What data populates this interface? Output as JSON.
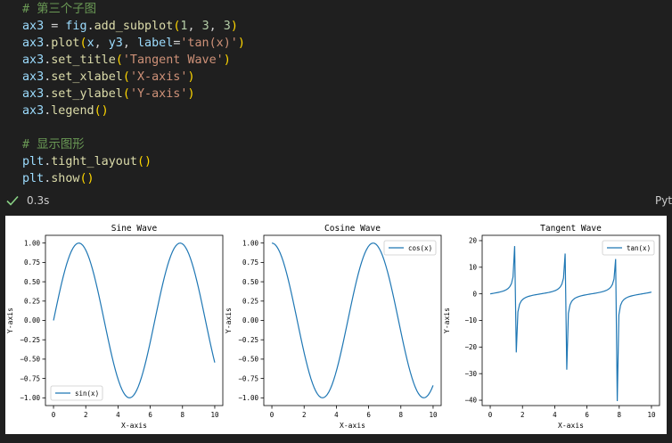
{
  "code": {
    "lines": [
      [
        {
          "t": "# 第三个子图",
          "c": "cm"
        }
      ],
      [
        {
          "t": "ax3",
          "c": "id"
        },
        {
          "t": " = ",
          "c": "pu"
        },
        {
          "t": "fig",
          "c": "id"
        },
        {
          "t": ".",
          "c": "pu"
        },
        {
          "t": "add_subplot",
          "c": "fn"
        },
        {
          "t": "(",
          "c": "pr"
        },
        {
          "t": "1",
          "c": "nm"
        },
        {
          "t": ", ",
          "c": "pu"
        },
        {
          "t": "3",
          "c": "nm"
        },
        {
          "t": ", ",
          "c": "pu"
        },
        {
          "t": "3",
          "c": "nm"
        },
        {
          "t": ")",
          "c": "pr"
        }
      ],
      [
        {
          "t": "ax3",
          "c": "id"
        },
        {
          "t": ".",
          "c": "pu"
        },
        {
          "t": "plot",
          "c": "fn"
        },
        {
          "t": "(",
          "c": "pr"
        },
        {
          "t": "x",
          "c": "id"
        },
        {
          "t": ", ",
          "c": "pu"
        },
        {
          "t": "y3",
          "c": "id"
        },
        {
          "t": ", ",
          "c": "pu"
        },
        {
          "t": "label",
          "c": "id"
        },
        {
          "t": "=",
          "c": "pu"
        },
        {
          "t": "'tan(x)'",
          "c": "st"
        },
        {
          "t": ")",
          "c": "pr"
        }
      ],
      [
        {
          "t": "ax3",
          "c": "id"
        },
        {
          "t": ".",
          "c": "pu"
        },
        {
          "t": "set_title",
          "c": "fn"
        },
        {
          "t": "(",
          "c": "pr"
        },
        {
          "t": "'Tangent Wave'",
          "c": "st"
        },
        {
          "t": ")",
          "c": "pr"
        }
      ],
      [
        {
          "t": "ax3",
          "c": "id"
        },
        {
          "t": ".",
          "c": "pu"
        },
        {
          "t": "set_xlabel",
          "c": "fn"
        },
        {
          "t": "(",
          "c": "pr"
        },
        {
          "t": "'X-axis'",
          "c": "st"
        },
        {
          "t": ")",
          "c": "pr"
        }
      ],
      [
        {
          "t": "ax3",
          "c": "id"
        },
        {
          "t": ".",
          "c": "pu"
        },
        {
          "t": "set_ylabel",
          "c": "fn"
        },
        {
          "t": "(",
          "c": "pr"
        },
        {
          "t": "'Y-axis'",
          "c": "st"
        },
        {
          "t": ")",
          "c": "pr"
        }
      ],
      [
        {
          "t": "ax3",
          "c": "id"
        },
        {
          "t": ".",
          "c": "pu"
        },
        {
          "t": "legend",
          "c": "fn"
        },
        {
          "t": "()",
          "c": "pr"
        }
      ],
      [],
      [
        {
          "t": "# 显示图形",
          "c": "cm"
        }
      ],
      [
        {
          "t": "plt",
          "c": "id"
        },
        {
          "t": ".",
          "c": "pu"
        },
        {
          "t": "tight_layout",
          "c": "fn"
        },
        {
          "t": "()",
          "c": "pr"
        }
      ],
      [
        {
          "t": "plt",
          "c": "id"
        },
        {
          "t": ".",
          "c": "pu"
        },
        {
          "t": "show",
          "c": "fn"
        },
        {
          "t": "()",
          "c": "pr"
        }
      ]
    ]
  },
  "status": {
    "exec_time": "0.3s",
    "language": "Pyt",
    "check_icon": "check-icon",
    "check_color": "#89d185"
  },
  "colors": {
    "line": "#1f77b4"
  },
  "chart_data": [
    {
      "type": "line",
      "function": "sin",
      "title": "Sine Wave",
      "xlabel": "X-axis",
      "ylabel": "Y-axis",
      "xlim": [
        -0.5,
        10.5
      ],
      "ylim": [
        -1.1,
        1.1
      ],
      "xticks": [
        0,
        2,
        4,
        6,
        8,
        10
      ],
      "yticks": [
        1.0,
        0.75,
        0.5,
        0.25,
        0.0,
        -0.25,
        -0.5,
        -0.75,
        -1.0
      ],
      "ytick_labels": [
        "1.00",
        "0.75",
        "0.50",
        "0.25",
        "0.00",
        "−0.25",
        "−0.50",
        "−0.75",
        "−1.00"
      ],
      "legend": {
        "label": "sin(x)",
        "position": "lower-left"
      },
      "series": [
        {
          "name": "sin(x)",
          "x_range": [
            0,
            10
          ]
        }
      ]
    },
    {
      "type": "line",
      "function": "cos",
      "title": "Cosine Wave",
      "xlabel": "X-axis",
      "ylabel": "Y-axis",
      "xlim": [
        -0.5,
        10.5
      ],
      "ylim": [
        -1.1,
        1.1
      ],
      "xticks": [
        0,
        2,
        4,
        6,
        8,
        10
      ],
      "yticks": [
        1.0,
        0.75,
        0.5,
        0.25,
        0.0,
        -0.25,
        -0.5,
        -0.75,
        -1.0
      ],
      "ytick_labels": [
        "1.00",
        "0.75",
        "0.50",
        "0.25",
        "0.00",
        "−0.25",
        "−0.50",
        "−0.75",
        "−1.00"
      ],
      "legend": {
        "label": "cos(x)",
        "position": "upper-right"
      },
      "series": [
        {
          "name": "cos(x)",
          "x_range": [
            0,
            10
          ]
        }
      ]
    },
    {
      "type": "line",
      "function": "tan",
      "title": "Tangent Wave",
      "xlabel": "X-axis",
      "ylabel": "Y-axis",
      "xlim": [
        -0.5,
        10.5
      ],
      "ylim": [
        -42,
        22
      ],
      "xticks": [
        0,
        2,
        4,
        6,
        8,
        10
      ],
      "yticks": [
        20,
        10,
        0,
        -10,
        -20,
        -30,
        -40
      ],
      "ytick_labels": [
        "20",
        "10",
        "0",
        "−10",
        "−20",
        "−30",
        "−40"
      ],
      "legend": {
        "label": "tan(x)",
        "position": "upper-right"
      },
      "series": [
        {
          "name": "tan(x)",
          "x_range": [
            0,
            10
          ]
        }
      ]
    }
  ]
}
